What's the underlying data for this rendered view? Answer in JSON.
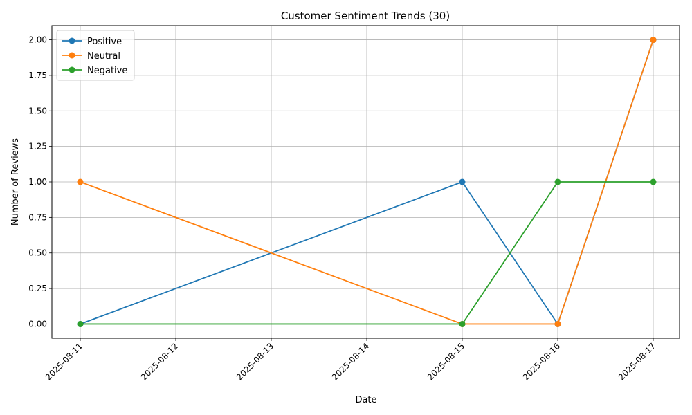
{
  "chart_data": {
    "type": "line",
    "title": "Customer Sentiment Trends (30)",
    "xlabel": "Date",
    "ylabel": "Number of Reviews",
    "x": [
      "2025-08-11",
      "2025-08-15",
      "2025-08-16",
      "2025-08-17"
    ],
    "x_ticks": [
      "2025-08-11",
      "2025-08-12",
      "2025-08-13",
      "2025-08-14",
      "2025-08-15",
      "2025-08-16",
      "2025-08-17"
    ],
    "y_ticks": [
      "0.00",
      "0.25",
      "0.50",
      "0.75",
      "1.00",
      "1.25",
      "1.50",
      "1.75",
      "2.00"
    ],
    "xlim": [
      "2025-08-11",
      "2025-08-17"
    ],
    "ylim": [
      -0.1,
      2.1
    ],
    "grid": true,
    "legend_position": "upper-left",
    "series": [
      {
        "name": "Positive",
        "color": "#1f77b4",
        "values": [
          0,
          1,
          0,
          2
        ]
      },
      {
        "name": "Neutral",
        "color": "#ff7f0e",
        "values": [
          1,
          0,
          0,
          2
        ]
      },
      {
        "name": "Negative",
        "color": "#2ca02c",
        "values": [
          0,
          0,
          1,
          1
        ]
      }
    ]
  }
}
